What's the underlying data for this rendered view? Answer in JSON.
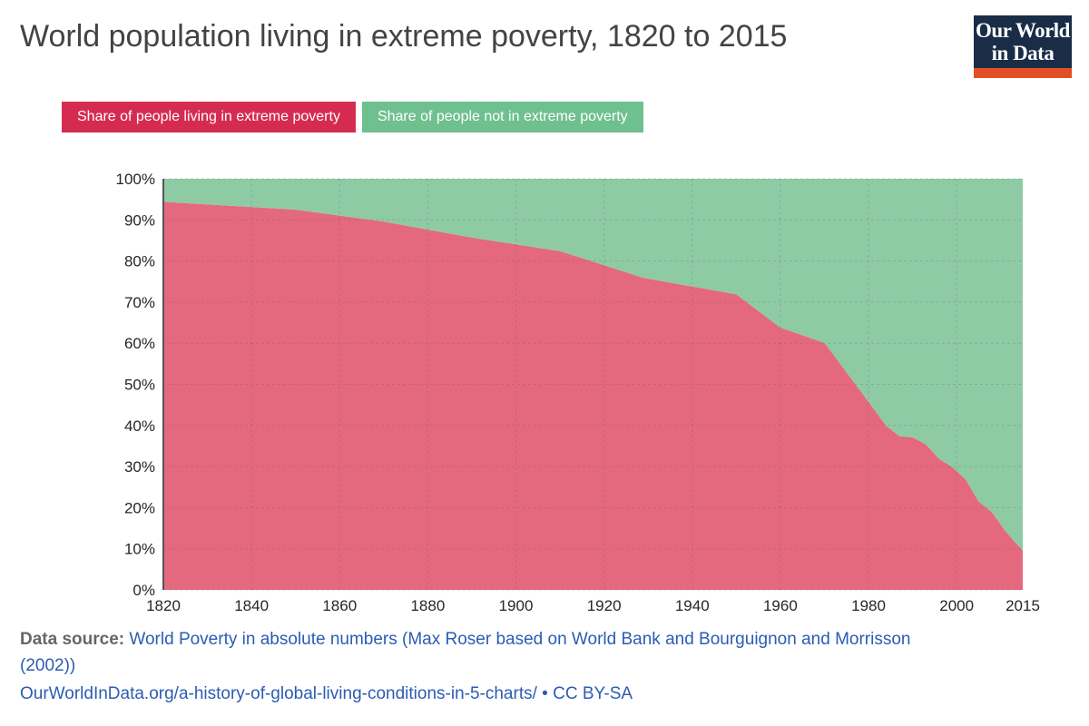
{
  "header": {
    "title": "World population living in extreme poverty, 1820 to 2015",
    "logo": {
      "line1": "Our World",
      "line2": "in Data"
    }
  },
  "legend": {
    "items": [
      {
        "label": "Share of people living in extreme poverty",
        "color": "#d62b51"
      },
      {
        "label": "Share of people not in extreme poverty",
        "color": "#6fc08f"
      }
    ]
  },
  "chart_data": {
    "type": "area",
    "stacked": true,
    "title": "World population living in extreme poverty, 1820 to 2015",
    "x": [
      1820,
      1850,
      1870,
      1890,
      1910,
      1929,
      1950,
      1960,
      1970,
      1981,
      1984,
      1987,
      1990,
      1993,
      1996,
      1999,
      2002,
      2005,
      2008,
      2011,
      2013,
      2015
    ],
    "series": [
      {
        "name": "Share of people living in extreme poverty",
        "color": "#e4697f",
        "values": [
          94.4,
          92.5,
          89.6,
          85.7,
          82.4,
          75.9,
          71.9,
          63.8,
          60.1,
          44.3,
          39.9,
          37.4,
          37.1,
          35.4,
          31.9,
          29.9,
          26.9,
          21.5,
          18.9,
          14.4,
          11.9,
          9.6
        ]
      },
      {
        "name": "Share of people not in extreme poverty",
        "color": "#8ecba5",
        "values": [
          5.6,
          7.5,
          10.4,
          14.3,
          17.6,
          24.1,
          28.1,
          36.2,
          39.9,
          55.7,
          60.1,
          62.6,
          62.9,
          64.6,
          68.1,
          70.1,
          73.1,
          78.5,
          81.1,
          85.6,
          88.1,
          90.4
        ]
      }
    ],
    "xlim": [
      1820,
      2015
    ],
    "ylim": [
      0,
      100
    ],
    "x_ticks": [
      1820,
      1840,
      1860,
      1880,
      1900,
      1920,
      1940,
      1960,
      1980,
      2000,
      2015
    ],
    "y_ticks": [
      0,
      10,
      20,
      30,
      40,
      50,
      60,
      70,
      80,
      90,
      100
    ],
    "y_tick_suffix": "%",
    "grid": true,
    "legend_position": "top"
  },
  "footer": {
    "source_label": "Data source:",
    "source_link_line1": "World Poverty in absolute numbers (Max Roser based on World Bank and Bourguignon and Morrisson",
    "source_link_line2": "(2002))",
    "url": "OurWorldInData.org/a-history-of-global-living-conditions-in-5-charts/",
    "separator": "•",
    "license": "CC BY-SA"
  },
  "colors": {
    "link_blue": "#2b5cb3",
    "logo_bg": "#192d47",
    "logo_stripe": "#e24f26",
    "title_text": "#434343",
    "axis_line": "#555555",
    "tick_label": "#262626"
  }
}
